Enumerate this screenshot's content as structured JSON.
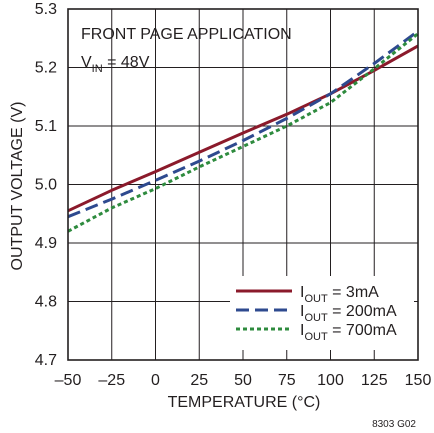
{
  "chart_data": {
    "type": "line",
    "title": "FRONT PAGE APPLICATION",
    "condition": {
      "main": "V",
      "sub": "IN",
      "rest": " = 48V"
    },
    "xlabel": "TEMPERATURE (°C)",
    "ylabel": "OUTPUT VOLTAGE (V)",
    "figure_id": "8303 G02",
    "xlim": [
      -50,
      150
    ],
    "ylim": [
      4.7,
      5.3
    ],
    "x_ticks": [
      -50,
      -25,
      0,
      25,
      50,
      75,
      100,
      125,
      150
    ],
    "x_tick_labels": [
      "–50",
      "–25",
      "0",
      "25",
      "50",
      "75",
      "100",
      "125",
      "150"
    ],
    "y_ticks": [
      4.7,
      4.8,
      4.9,
      5.0,
      5.1,
      5.2,
      5.3
    ],
    "y_tick_labels": [
      "4.7",
      "4.8",
      "4.9",
      "5.0",
      "5.1",
      "5.2",
      "5.3"
    ],
    "grid": true,
    "legend_position": "bottom-right",
    "x": [
      -50,
      -25,
      0,
      25,
      50,
      75,
      100,
      125,
      150
    ],
    "series": [
      {
        "name": "IOUT = 3mA",
        "legend": {
          "main": "I",
          "sub": "OUT",
          "rest": " = 3mA"
        },
        "color": "#8b1a2b",
        "style": "solid",
        "values": [
          4.955,
          4.99,
          5.022,
          5.055,
          5.088,
          5.12,
          5.155,
          5.195,
          5.237
        ]
      },
      {
        "name": "IOUT = 200mA",
        "legend": {
          "main": "I",
          "sub": "OUT",
          "rest": " = 200mA"
        },
        "color": "#2e4a8f",
        "style": "dashed",
        "values": [
          4.945,
          4.975,
          5.007,
          5.04,
          5.075,
          5.113,
          5.155,
          5.207,
          5.262
        ]
      },
      {
        "name": "IOUT = 700mA",
        "legend": {
          "main": "I",
          "sub": "OUT",
          "rest": " = 700mA"
        },
        "color": "#2e8b3e",
        "style": "dotted",
        "values": [
          4.92,
          4.96,
          4.993,
          5.03,
          5.065,
          5.1,
          5.14,
          5.198,
          5.258
        ]
      }
    ]
  }
}
